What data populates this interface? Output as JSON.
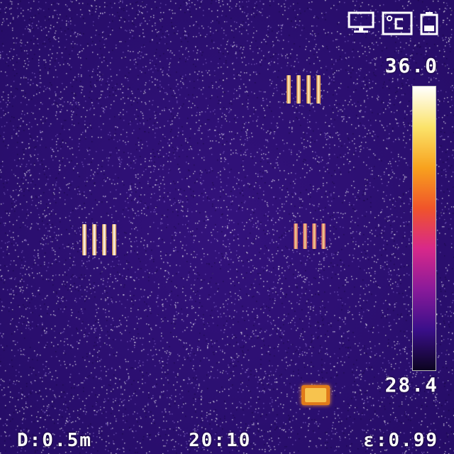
{
  "overlay": {
    "temp_max": "36.0",
    "temp_min": "28.4",
    "distance": "D:0.5m",
    "time": "20:10",
    "emissivity": "ε:0.99"
  },
  "icons": [
    "monitor-icon",
    "celsius-icon",
    "battery-icon"
  ],
  "colors": {
    "background": "#2b0f70",
    "palette": [
      "#0c0420",
      "#3a0f8a",
      "#8a1a9a",
      "#d8288a",
      "#f0542a",
      "#f8a21e",
      "#fbe36a",
      "#ffffff"
    ]
  }
}
